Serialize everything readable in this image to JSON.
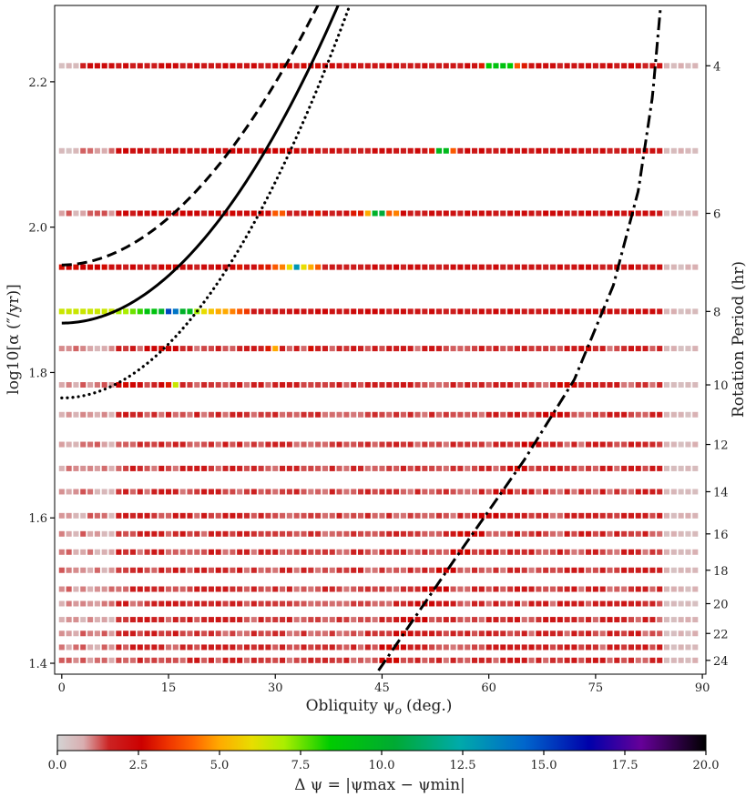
{
  "chart_data": {
    "type": "heatmap",
    "title": "",
    "xlabel": "Obliquity ψ",
    "xlabel_sub": "o",
    "xlabel_unit": "(deg.)",
    "ylabel_left": "log10[α (″/yr)]",
    "ylabel_right": "Rotation Period (hr)",
    "colorbar_label": "Δ ψ = |ψmax − ψmin|",
    "xlim": [
      -1,
      90.5
    ],
    "ylim": [
      1.385,
      2.305
    ],
    "x_ticks": [
      0,
      15,
      30,
      45,
      60,
      75,
      90
    ],
    "y_ticks": [
      1.4,
      1.6,
      1.8,
      2.0,
      2.2
    ],
    "y_tick_labels": [
      "1.4",
      "1.6",
      "1.8",
      "2.0",
      "2.2"
    ],
    "right_ticks": [
      4,
      6,
      8,
      10,
      12,
      14,
      16,
      18,
      20,
      22,
      24
    ],
    "right_tick_log_alpha": [
      2.222,
      2.019,
      1.884,
      1.783,
      1.701,
      1.636,
      1.578,
      1.528,
      1.482,
      1.441,
      1.404
    ],
    "rotation_periods_hr": [
      4,
      5,
      6,
      7,
      8,
      9,
      10,
      11,
      12,
      13,
      14,
      15,
      16,
      17,
      18,
      19,
      20,
      21,
      22,
      23,
      24
    ],
    "row_log_alpha": [
      2.222,
      2.105,
      2.019,
      1.945,
      1.884,
      1.833,
      1.783,
      1.742,
      1.701,
      1.668,
      1.636,
      1.603,
      1.578,
      1.553,
      1.528,
      1.502,
      1.482,
      1.46,
      1.441,
      1.422,
      1.404
    ],
    "x_step": 1,
    "colorbar": {
      "min": 0,
      "max": 20,
      "ticks": [
        0.0,
        2.5,
        5.0,
        7.5,
        10.0,
        12.5,
        15.0,
        17.5,
        20.0
      ],
      "tick_labels": [
        "0.0",
        "2.5",
        "5.0",
        "7.5",
        "10.0",
        "12.5",
        "15.0",
        "17.5",
        "20.0"
      ],
      "stops": [
        [
          0.0,
          "#d4d4d4"
        ],
        [
          0.04,
          "#d9aeb0"
        ],
        [
          0.08,
          "#cc2222"
        ],
        [
          0.13,
          "#cc0000"
        ],
        [
          0.17,
          "#ee3300"
        ],
        [
          0.21,
          "#ff6600"
        ],
        [
          0.25,
          "#ffaa00"
        ],
        [
          0.3,
          "#e8dd00"
        ],
        [
          0.35,
          "#aaee00"
        ],
        [
          0.42,
          "#00cc00"
        ],
        [
          0.52,
          "#00aa33"
        ],
        [
          0.62,
          "#00aaaa"
        ],
        [
          0.72,
          "#0066cc"
        ],
        [
          0.82,
          "#0000aa"
        ],
        [
          0.9,
          "#660099"
        ],
        [
          1.0,
          "#000000"
        ]
      ]
    },
    "curves": [
      {
        "name": "dashed",
        "style": "dashed",
        "y0": 1.948,
        "a": 0.00033,
        "b": 1.95,
        "x_range": [
          0,
          70
        ]
      },
      {
        "name": "solid",
        "style": "solid",
        "y0": 1.868,
        "a": 0.00029,
        "b": 2.0,
        "x_range": [
          0,
          70
        ]
      },
      {
        "name": "dotted",
        "style": "dotted",
        "y0": 1.765,
        "a": 0.00033,
        "b": 2.0,
        "x_range": [
          0,
          90
        ]
      },
      {
        "name": "dash-dot",
        "style": "dashdot",
        "x_range": [
          44.5,
          84.1
        ],
        "points": [
          [
            44.5,
            1.39
          ],
          [
            55,
            1.54
          ],
          [
            65,
            1.68
          ],
          [
            72,
            1.79
          ],
          [
            77.5,
            1.92
          ],
          [
            81,
            2.05
          ],
          [
            83,
            2.18
          ],
          [
            84.1,
            2.3
          ]
        ]
      }
    ],
    "features": [
      {
        "row": 0,
        "x": [
          60,
          61,
          62,
          63,
          64
        ],
        "v": [
          8.5,
          9,
          9,
          8.5,
          4
        ]
      },
      {
        "row": 0,
        "x": [
          59,
          65
        ],
        "v": [
          3,
          3
        ]
      },
      {
        "row": 1,
        "x": [
          53,
          54,
          55,
          52
        ],
        "v": [
          9.5,
          9.5,
          4,
          3
        ]
      },
      {
        "row": 2,
        "x": [
          43,
          44,
          45,
          46,
          47,
          41,
          42
        ],
        "v": [
          5,
          10,
          10.5,
          4,
          4.5,
          3,
          3
        ]
      },
      {
        "row": 2,
        "x": [
          30,
          31,
          36
        ],
        "v": [
          4,
          4,
          3
        ]
      },
      {
        "row": 3,
        "x": [
          30,
          31,
          32,
          33,
          34,
          35,
          36,
          25,
          28,
          29
        ],
        "v": [
          4,
          4.5,
          6,
          13,
          6,
          5,
          4,
          3,
          3,
          3
        ]
      },
      {
        "row": 4,
        "x": [
          0,
          1,
          2,
          3,
          4,
          5,
          6,
          7,
          8,
          9,
          10,
          11,
          12,
          13,
          14,
          15,
          16,
          17,
          18,
          19,
          20,
          21,
          22,
          23,
          24,
          25,
          26
        ],
        "v": [
          6.5,
          6.5,
          6.5,
          6.5,
          6.5,
          6.5,
          6.5,
          6.5,
          7,
          7,
          7.5,
          8,
          9,
          9,
          10,
          15,
          14,
          10,
          9.5,
          7,
          6,
          5.5,
          5,
          5,
          4.5,
          4,
          3.5
        ]
      },
      {
        "row": 5,
        "x": [
          30,
          29,
          35
        ],
        "v": [
          5,
          3,
          2.8
        ]
      },
      {
        "row": 6,
        "x": [
          16,
          15,
          14
        ],
        "v": [
          6.5,
          3,
          2.5
        ]
      }
    ]
  }
}
